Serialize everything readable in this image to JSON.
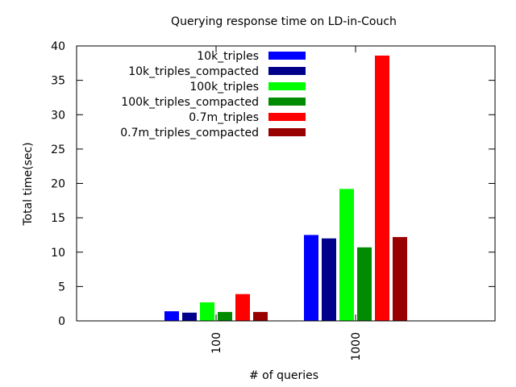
{
  "chart_data": {
    "type": "bar",
    "title": "Querying response time on LD-in-Couch",
    "xlabel": "# of queries",
    "ylabel": "Total time(sec)",
    "categories": [
      "100",
      "1000"
    ],
    "ylim": [
      0,
      40
    ],
    "yticks": [
      0,
      5,
      10,
      15,
      20,
      25,
      30,
      35,
      40
    ],
    "legend_position": "top-left",
    "series": [
      {
        "name": "10k_triples",
        "color": "#0000ff",
        "values": [
          1.4,
          12.5
        ]
      },
      {
        "name": "10k_triples_compacted",
        "color": "#00008b",
        "values": [
          1.2,
          12.0
        ]
      },
      {
        "name": "100k_triples",
        "color": "#00ff00",
        "values": [
          2.7,
          19.2
        ]
      },
      {
        "name": "100k_triples_compacted",
        "color": "#008b00",
        "values": [
          1.3,
          10.7
        ]
      },
      {
        "name": "0.7m_triples",
        "color": "#ff0000",
        "values": [
          3.9,
          38.6
        ]
      },
      {
        "name": "0.7m_triples_compacted",
        "color": "#990000",
        "values": [
          1.3,
          12.2
        ]
      }
    ]
  }
}
